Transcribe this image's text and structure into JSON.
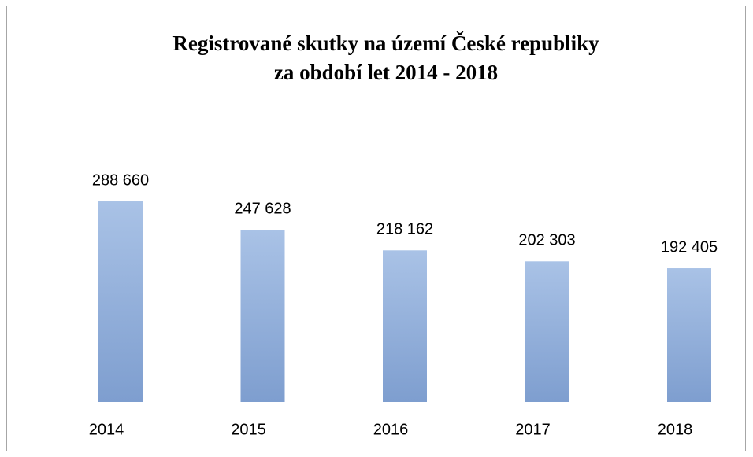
{
  "chart_data": {
    "type": "bar",
    "title": "Registrované skutky na území České republiky",
    "subtitle": "za období let 2014 - 2018",
    "categories": [
      "2014",
      "2015",
      "2016",
      "2017",
      "2018"
    ],
    "values": [
      288660,
      247628,
      218162,
      202303,
      192405
    ],
    "value_labels": [
      "288 660",
      "247 628",
      "218 162",
      "202 303",
      "192 405"
    ],
    "color": "#93b0dc",
    "ylim": [
      0,
      300000
    ]
  }
}
